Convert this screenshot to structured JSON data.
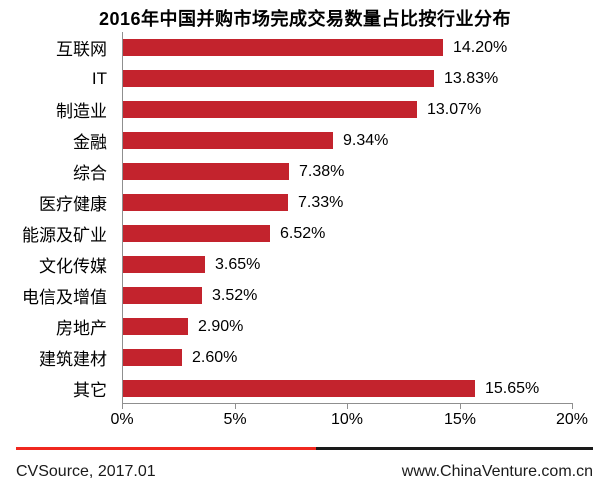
{
  "title": "2016年中国并购市场完成交易数量占比按行业分布",
  "chart_data": {
    "type": "bar",
    "orientation": "horizontal",
    "title": "2016年中国并购市场完成交易数量占比按行业分布",
    "categories": [
      "互联网",
      "IT",
      "制造业",
      "金融",
      "综合",
      "医疗健康",
      "能源及矿业",
      "文化传媒",
      "电信及增值",
      "房地产",
      "建筑建材",
      "其它"
    ],
    "values": [
      14.2,
      13.83,
      13.07,
      9.34,
      7.38,
      7.33,
      6.52,
      3.65,
      3.52,
      2.9,
      2.6,
      15.65
    ],
    "value_labels": [
      "14.20%",
      "13.83%",
      "13.07%",
      "9.34%",
      "7.38%",
      "7.33%",
      "6.52%",
      "3.65%",
      "3.52%",
      "2.90%",
      "2.60%",
      "15.65%"
    ],
    "xlabel": "",
    "ylabel": "",
    "xlim": [
      0,
      20
    ],
    "x_ticks": [
      "0%",
      "5%",
      "10%",
      "15%",
      "20%"
    ],
    "x_tick_values": [
      0,
      5,
      10,
      15,
      20
    ],
    "grid": false,
    "legend": false,
    "bar_color": "#C3232D",
    "axis_color": "#8F8F8F",
    "text_color": "#000000"
  },
  "footer": {
    "source": "CVSource, 2017.01",
    "website": "www.ChinaVenture.com.cn",
    "divider_left_color": "#F0281F",
    "divider_right_color": "#1A1A1A"
  }
}
